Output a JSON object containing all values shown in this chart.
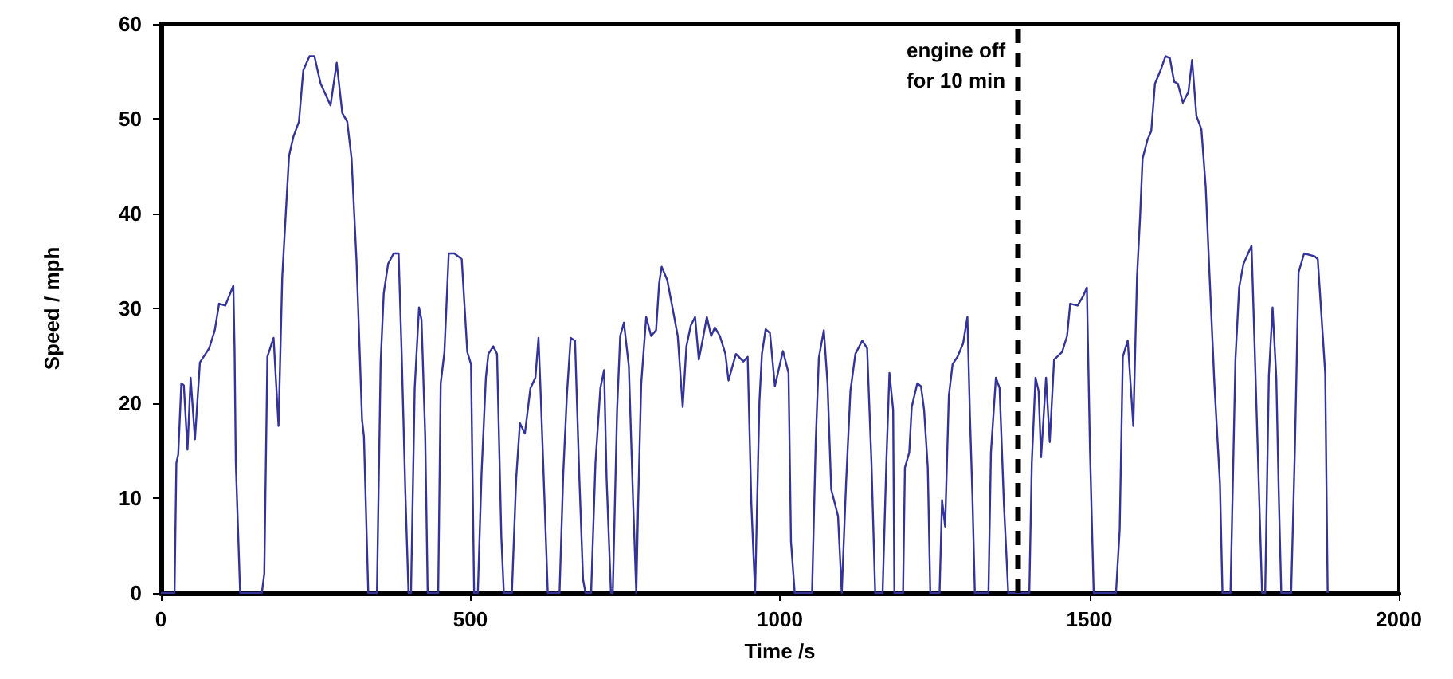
{
  "chart_data": {
    "type": "line",
    "xlabel": "Time /s",
    "ylabel": "Speed / mph",
    "x": [
      0,
      22,
      25,
      28,
      33,
      37,
      43,
      48,
      55,
      63,
      78,
      87,
      94,
      104,
      117,
      119,
      121,
      128,
      163,
      167,
      172,
      182,
      190,
      196,
      202,
      207,
      214,
      223,
      230,
      240,
      248,
      258,
      274,
      284,
      293,
      301,
      308,
      316,
      325,
      328,
      335,
      349,
      355,
      360,
      367,
      376,
      384,
      389,
      395,
      400,
      404,
      410,
      417,
      421,
      427,
      431,
      448,
      452,
      458,
      465,
      474,
      486,
      495,
      501,
      506,
      512,
      518,
      525,
      529,
      537,
      543,
      550,
      554,
      567,
      574,
      580,
      588,
      597,
      605,
      610,
      614,
      620,
      625,
      644,
      650,
      656,
      662,
      669,
      676,
      682,
      686,
      695,
      702,
      710,
      716,
      720,
      727,
      730,
      737,
      742,
      748,
      756,
      763,
      768,
      771,
      776,
      784,
      792,
      800,
      805,
      809,
      818,
      827,
      835,
      843,
      849,
      856,
      863,
      869,
      875,
      882,
      889,
      895,
      903,
      912,
      917,
      929,
      941,
      948,
      954,
      960,
      967,
      971,
      977,
      984,
      992,
      1005,
      1014,
      1018,
      1024,
      1052,
      1058,
      1063,
      1071,
      1077,
      1083,
      1094,
      1100,
      1107,
      1114,
      1122,
      1133,
      1141,
      1148,
      1154,
      1166,
      1172,
      1177,
      1183,
      1185,
      1199,
      1202,
      1209,
      1213,
      1222,
      1228,
      1233,
      1239,
      1243,
      1258,
      1262,
      1267,
      1273,
      1279,
      1287,
      1296,
      1303,
      1307,
      1311,
      1315,
      1337,
      1341,
      1349,
      1355,
      1362,
      1369,
      1390,
      1403,
      1407,
      1413,
      1418,
      1422,
      1430,
      1436,
      1443,
      1456,
      1464,
      1469,
      1481,
      1490,
      1496,
      1501,
      1507,
      1543,
      1549,
      1554,
      1562,
      1571,
      1577,
      1582,
      1586,
      1594,
      1600,
      1606,
      1615,
      1623,
      1630,
      1637,
      1643,
      1651,
      1660,
      1666,
      1673,
      1681,
      1688,
      1694,
      1702,
      1711,
      1715,
      1728,
      1736,
      1742,
      1749,
      1762,
      1766,
      1772,
      1779,
      1784,
      1790,
      1796,
      1802,
      1806,
      1810,
      1826,
      1832,
      1838,
      1847,
      1864,
      1869,
      1881,
      1885
    ],
    "series": [
      {
        "color": "#333399",
        "values": [
          0,
          0,
          13.7,
          14.6,
          22.1,
          21.9,
          15.1,
          22.7,
          16.2,
          24.3,
          25.8,
          27.7,
          30.5,
          30.3,
          32.4,
          25.6,
          13.7,
          0,
          0,
          2,
          24.9,
          26.9,
          17.6,
          33.3,
          40.3,
          46.1,
          48.1,
          49.7,
          55.1,
          56.6,
          56.6,
          53.7,
          51.4,
          55.9,
          50.6,
          49.7,
          45.8,
          35,
          18.2,
          16.5,
          0,
          0,
          24.3,
          31.6,
          34.7,
          35.8,
          35.8,
          25.1,
          10.4,
          0,
          0,
          21.6,
          30.1,
          28.8,
          16.5,
          0,
          0,
          22.1,
          25.4,
          35.8,
          35.8,
          35.2,
          25.4,
          24.1,
          0,
          0,
          12.6,
          22.7,
          25.2,
          26,
          25.2,
          5.9,
          0,
          0,
          12.1,
          17.9,
          16.8,
          21.6,
          22.7,
          26.9,
          20.2,
          9.3,
          0,
          0,
          12.6,
          21,
          26.9,
          26.6,
          12.1,
          1.4,
          0,
          0,
          13.7,
          21.6,
          23.5,
          12.1,
          0,
          0,
          19.3,
          27.1,
          28.5,
          23.9,
          9.3,
          0,
          9.3,
          22.1,
          29.1,
          27.1,
          27.7,
          32.7,
          34.4,
          33,
          29.9,
          27.1,
          19.6,
          26,
          28.2,
          29.1,
          24.6,
          26.6,
          29.1,
          27.1,
          28,
          27.1,
          25.2,
          22.4,
          25.2,
          24.4,
          24.9,
          9.3,
          0,
          20.2,
          25.2,
          27.8,
          27.4,
          21.8,
          25.5,
          23.2,
          5.4,
          0,
          0,
          16,
          24.8,
          27.7,
          22.1,
          10.9,
          8.1,
          0,
          11.6,
          21.3,
          25.2,
          26.6,
          25.8,
          13.7,
          0,
          0,
          13.7,
          23.2,
          19.3,
          0,
          0,
          13.2,
          14.8,
          19.6,
          22.1,
          21.8,
          19.3,
          13.2,
          0,
          0,
          9.8,
          7,
          20.8,
          24.1,
          24.9,
          26.3,
          29.1,
          18.8,
          10.4,
          0,
          0,
          14.8,
          22.7,
          21.6,
          9.3,
          0,
          0,
          0,
          13.7,
          22.7,
          21.3,
          14.3,
          22.7,
          15.9,
          24.6,
          25.4,
          27.1,
          30.5,
          30.3,
          31.3,
          32.2,
          15.1,
          0,
          0,
          6.7,
          24.9,
          26.6,
          17.6,
          33.3,
          39.7,
          45.8,
          47.8,
          48.7,
          53.7,
          55.1,
          56.6,
          56.4,
          53.9,
          53.7,
          51.7,
          52.8,
          56.2,
          50.3,
          48.9,
          42.8,
          33.8,
          22.1,
          11.5,
          0,
          0,
          24.6,
          32.2,
          34.7,
          36.6,
          28.2,
          15.1,
          0,
          0,
          22.9,
          30.1,
          22.7,
          10.4,
          0,
          0,
          15.1,
          33.8,
          35.8,
          35.5,
          35.2,
          23.2,
          0
        ]
      }
    ],
    "xlim": [
      0,
      2000
    ],
    "xticks": [
      0,
      500,
      1000,
      1500,
      2000
    ],
    "ylim": [
      0,
      60
    ],
    "yticks": [
      0,
      10,
      20,
      30,
      40,
      50,
      60
    ],
    "grid": false,
    "marker": "none",
    "line_style": "solid",
    "ref_lines": [
      {
        "axis": "x",
        "value": 1385,
        "label": "engine off\nfor 10 min",
        "color": "#000000",
        "line_style": "dashed"
      }
    ]
  }
}
